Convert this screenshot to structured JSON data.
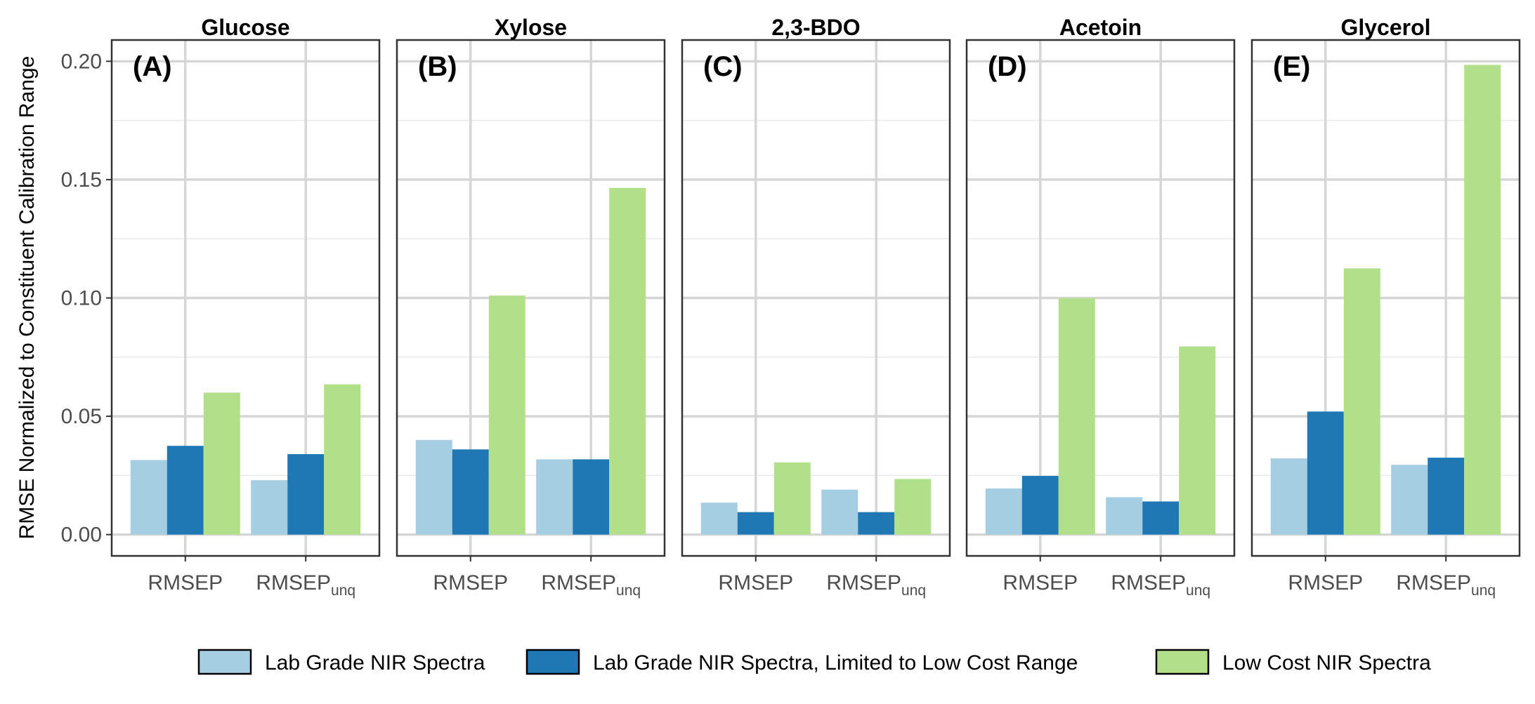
{
  "chart_data": {
    "type": "bar",
    "ylabel": "RMSE Normalized to Constituent Calibration Range",
    "xlabel": "",
    "ylim": [
      -0.009,
      0.209
    ],
    "yticks": [
      0.0,
      0.05,
      0.1,
      0.15,
      0.2
    ],
    "ytick_labels": [
      "0.00",
      "0.05",
      "0.10",
      "0.15",
      "0.20"
    ],
    "categories": [
      {
        "main": "RMSEP",
        "sub": ""
      },
      {
        "main": "RMSEP",
        "sub": "unq"
      }
    ],
    "series_names": [
      "Lab Grade NIR Spectra",
      "Lab Grade NIR Spectra, Limited to Low Cost Range",
      "Low Cost NIR Spectra"
    ],
    "series_colors": [
      "#a6cee3",
      "#1f78b4",
      "#b2df8a"
    ],
    "legend_position": "bottom",
    "grid": true,
    "panels": [
      {
        "title": "Glucose",
        "tag": "(A)",
        "values": [
          [
            0.0315,
            0.0375,
            0.06
          ],
          [
            0.023,
            0.034,
            0.0635
          ]
        ]
      },
      {
        "title": "Xylose",
        "tag": "(B)",
        "values": [
          [
            0.04,
            0.036,
            0.101
          ],
          [
            0.0318,
            0.0318,
            0.1465
          ]
        ]
      },
      {
        "title": "2,3-BDO",
        "tag": "(C)",
        "values": [
          [
            0.0135,
            0.0095,
            0.0305
          ],
          [
            0.019,
            0.0095,
            0.0235
          ]
        ]
      },
      {
        "title": "Acetoin",
        "tag": "(D)",
        "values": [
          [
            0.0195,
            0.0248,
            0.1
          ],
          [
            0.0158,
            0.014,
            0.0795
          ]
        ]
      },
      {
        "title": "Glycerol",
        "tag": "(E)",
        "values": [
          [
            0.0322,
            0.052,
            0.1125
          ],
          [
            0.0295,
            0.0325,
            0.1985
          ]
        ]
      }
    ]
  }
}
